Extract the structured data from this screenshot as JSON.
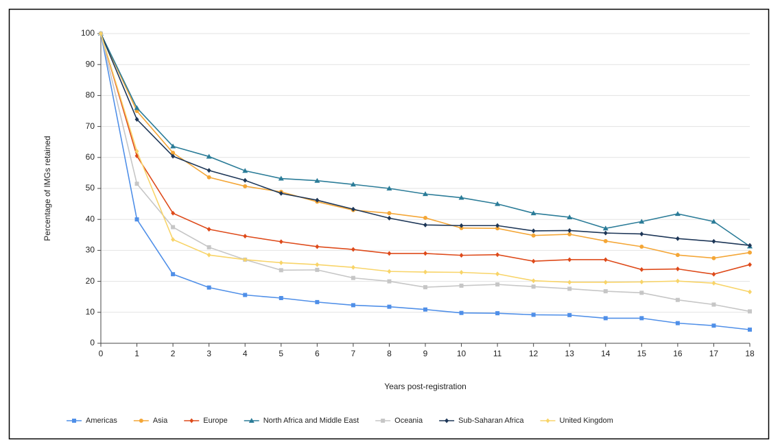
{
  "chart_data": {
    "type": "line",
    "x_label": "Years post-registration",
    "y_label": "Percentage of IMGs retained",
    "x": [
      0,
      1,
      2,
      3,
      4,
      5,
      6,
      7,
      8,
      9,
      10,
      11,
      12,
      13,
      14,
      15,
      16,
      17,
      18
    ],
    "xlim": [
      0,
      18
    ],
    "xticks": [
      0,
      1,
      2,
      3,
      4,
      5,
      6,
      7,
      8,
      9,
      10,
      11,
      12,
      13,
      14,
      15,
      16,
      17,
      18
    ],
    "ylim": [
      0,
      100
    ],
    "yticks": [
      0,
      10,
      20,
      30,
      40,
      50,
      60,
      70,
      80,
      90,
      100
    ],
    "grid": true,
    "legend": "bottom",
    "series": [
      {
        "name": "Americas",
        "color": "#4f8fe8",
        "marker": "square",
        "values": [
          100,
          40,
          22.3,
          18,
          15.6,
          14.6,
          13.3,
          12.3,
          11.8,
          10.9,
          9.8,
          9.7,
          9.2,
          9.1,
          8.1,
          8.1,
          6.5,
          5.7,
          4.4
        ]
      },
      {
        "name": "Asia",
        "color": "#f4a636",
        "marker": "circle",
        "values": [
          100,
          75,
          61.5,
          53.6,
          50.7,
          48.9,
          45.7,
          43,
          42,
          40.5,
          37.2,
          37.1,
          34.8,
          35.2,
          33,
          31.2,
          28.5,
          27.5,
          29.3
        ]
      },
      {
        "name": "Europe",
        "color": "#de4a1a",
        "marker": "diamond",
        "values": [
          100,
          60.5,
          42,
          36.8,
          34.6,
          32.8,
          31.2,
          30.3,
          29,
          29,
          28.4,
          28.6,
          26.5,
          27,
          27,
          23.8,
          24,
          22.3,
          25.4
        ]
      },
      {
        "name": "North Africa and Middle East",
        "color": "#2b7c98",
        "marker": "triangle",
        "values": [
          100,
          76,
          63.6,
          60.3,
          55.7,
          53.2,
          52.5,
          51.3,
          50,
          48.2,
          47,
          45,
          42,
          40.7,
          37.1,
          39.3,
          41.8,
          39.3,
          31.3
        ]
      },
      {
        "name": "Oceania",
        "color": "#c6c6c6",
        "marker": "square",
        "values": [
          100,
          51.5,
          37.5,
          31,
          27,
          23.6,
          23.7,
          21.1,
          20,
          18.1,
          18.6,
          19,
          18.3,
          17.6,
          16.8,
          16.3,
          14,
          12.5,
          10.3
        ]
      },
      {
        "name": "Sub-Saharan Africa",
        "color": "#1d3657",
        "marker": "diamond",
        "values": [
          100,
          72.3,
          60.4,
          55.8,
          52.6,
          48.4,
          46.2,
          43.3,
          40.4,
          38.2,
          38,
          38,
          36.3,
          36.4,
          35.6,
          35.3,
          33.8,
          32.9,
          31.6
        ]
      },
      {
        "name": "United Kingdom",
        "color": "#f8d468",
        "marker": "diamond",
        "values": [
          100,
          62,
          33.5,
          28.5,
          27,
          26,
          25.4,
          24.5,
          23.2,
          23,
          22.9,
          22.4,
          20.2,
          19.7,
          19.7,
          19.8,
          20.1,
          19.4,
          16.6
        ]
      }
    ]
  }
}
